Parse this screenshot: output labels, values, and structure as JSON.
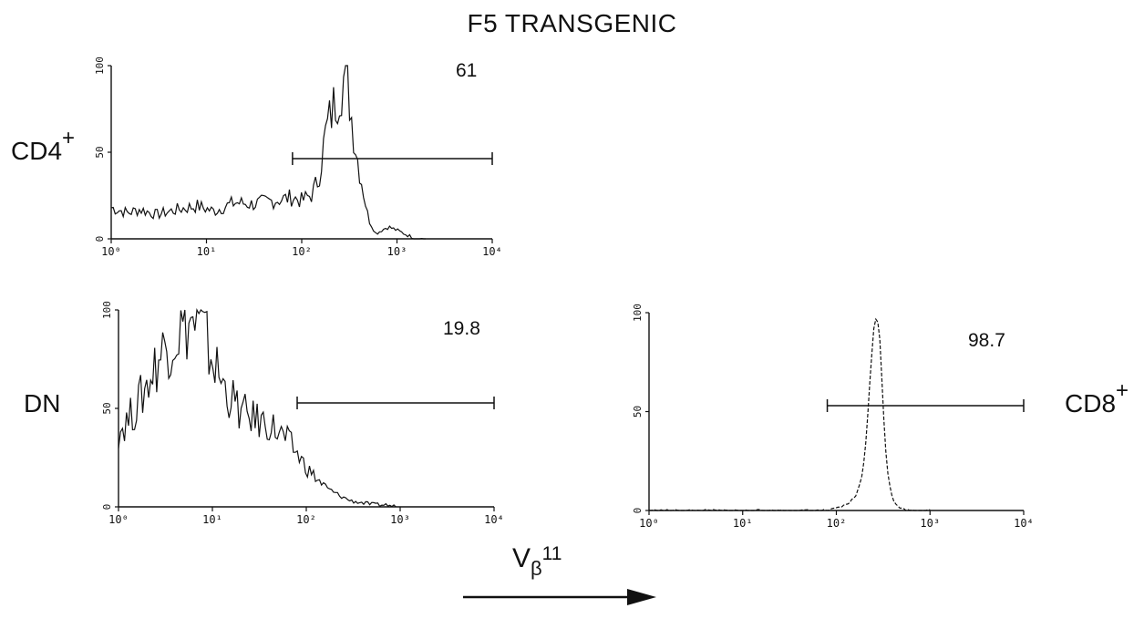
{
  "title": "F5 TRANSGENIC",
  "x_axis": {
    "symbol": "V",
    "subscript": "β",
    "superscript": "11"
  },
  "colors": {
    "ink": "#111111",
    "background": "#ffffff"
  },
  "chart_data": [
    {
      "type": "area",
      "panel": "CD4+",
      "label": {
        "main": "CD4",
        "sup": "+"
      },
      "percent_positive": "61",
      "x_scale": "log",
      "xlim": [
        1,
        10000
      ],
      "x_ticks": [
        "10⁰",
        "10¹",
        "10²",
        "10³",
        "10⁴"
      ],
      "ylim": [
        0,
        100
      ],
      "y_ticks": [
        "0",
        "50",
        "100"
      ],
      "gate": [
        80,
        10000
      ],
      "x": [
        1,
        1.5,
        2,
        3,
        5,
        8,
        12,
        20,
        30,
        50,
        80,
        100,
        130,
        150,
        180,
        220,
        260,
        300,
        330,
        380,
        420,
        500,
        600,
        800,
        1000,
        1300,
        1600,
        2000
      ],
      "values": [
        18,
        15,
        17,
        14,
        17,
        19,
        16,
        21,
        20,
        22,
        24,
        22,
        26,
        35,
        62,
        78,
        90,
        95,
        72,
        48,
        35,
        12,
        3,
        7,
        5,
        2,
        0,
        0
      ],
      "grid": false,
      "legend": "none"
    },
    {
      "type": "area",
      "panel": "DN",
      "label": {
        "main": "DN",
        "sup": ""
      },
      "percent_positive": "19.8",
      "x_scale": "log",
      "xlim": [
        1,
        10000
      ],
      "x_ticks": [
        "10⁰",
        "10¹",
        "10²",
        "10³",
        "10⁴"
      ],
      "ylim": [
        0,
        100
      ],
      "y_ticks": [
        "0",
        "50",
        "100"
      ],
      "gate": [
        80,
        10000
      ],
      "x": [
        1,
        1.3,
        1.6,
        2,
        2.5,
        3,
        4,
        5,
        6,
        8,
        10,
        13,
        16,
        20,
        25,
        30,
        40,
        50,
        65,
        80,
        100,
        130,
        170,
        220,
        300,
        400,
        550,
        700,
        900
      ],
      "values": [
        38,
        45,
        52,
        62,
        72,
        80,
        87,
        92,
        94,
        88,
        75,
        62,
        55,
        48,
        46,
        44,
        42,
        38,
        33,
        27,
        20,
        14,
        9,
        6,
        3,
        2,
        1,
        1,
        0
      ],
      "grid": false,
      "legend": "none"
    },
    {
      "type": "area",
      "panel": "CD8+",
      "label": {
        "main": "CD8",
        "sup": "+"
      },
      "percent_positive": "98.7",
      "x_scale": "log",
      "xlim": [
        1,
        10000
      ],
      "x_ticks": [
        "10⁰",
        "10¹",
        "10²",
        "10³",
        "10⁴"
      ],
      "ylim": [
        0,
        100
      ],
      "y_ticks": [
        "0",
        "50",
        "100"
      ],
      "gate": [
        80,
        10000
      ],
      "x": [
        1,
        10,
        50,
        80,
        100,
        130,
        160,
        190,
        210,
        230,
        250,
        270,
        290,
        310,
        330,
        360,
        400,
        450,
        500,
        600,
        1000
      ],
      "values": [
        0,
        0,
        0,
        0,
        1,
        3,
        7,
        18,
        38,
        68,
        92,
        99,
        88,
        62,
        35,
        16,
        6,
        2,
        1,
        0,
        0
      ],
      "grid": false,
      "legend": "none"
    }
  ]
}
